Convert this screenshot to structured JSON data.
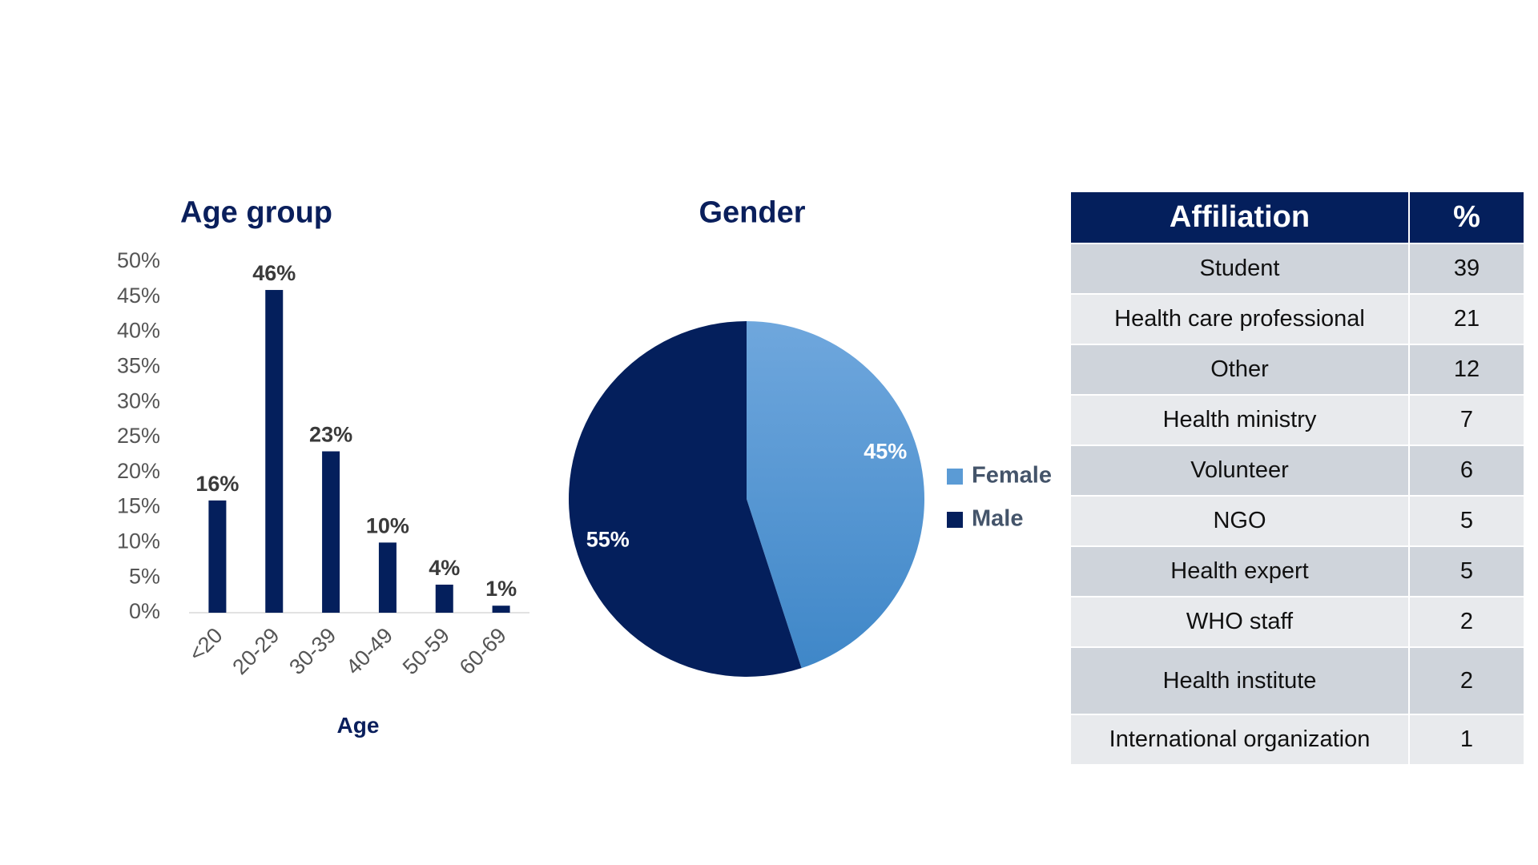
{
  "chart_data": [
    {
      "type": "bar",
      "title": "Age group",
      "xlabel": "Age",
      "ylabel": "",
      "categories": [
        "<20",
        "20-29",
        "30-39",
        "40-49",
        "50-59",
        "60-69"
      ],
      "values": [
        16,
        46,
        23,
        10,
        4,
        1
      ],
      "data_labels": [
        "16%",
        "46%",
        "23%",
        "10%",
        "4%",
        "1%"
      ],
      "ylim": [
        0,
        50
      ],
      "yticks": [
        "0%",
        "5%",
        "10%",
        "15%",
        "20%",
        "25%",
        "30%",
        "35%",
        "40%",
        "45%",
        "50%"
      ],
      "grid": false,
      "bar_color": "#041f5c"
    },
    {
      "type": "pie",
      "title": "Gender",
      "slices": [
        {
          "name": "Female",
          "value": 45,
          "label": "45%",
          "color": "#5b9bd5"
        },
        {
          "name": "Male",
          "value": 55,
          "label": "55%",
          "color": "#041f5c"
        }
      ],
      "legend": "right"
    },
    {
      "type": "table",
      "columns": [
        "Affiliation",
        "%"
      ],
      "rows": [
        [
          "Student",
          "39"
        ],
        [
          "Health care professional",
          "21"
        ],
        [
          "Other",
          "12"
        ],
        [
          "Health ministry",
          "7"
        ],
        [
          "Volunteer",
          "6"
        ],
        [
          "NGO",
          "5"
        ],
        [
          "Health expert",
          "5"
        ],
        [
          "WHO staff",
          "2"
        ],
        [
          "Health institute",
          "2"
        ],
        [
          "International organization",
          "1"
        ]
      ],
      "header_color": "#041f5c"
    }
  ]
}
